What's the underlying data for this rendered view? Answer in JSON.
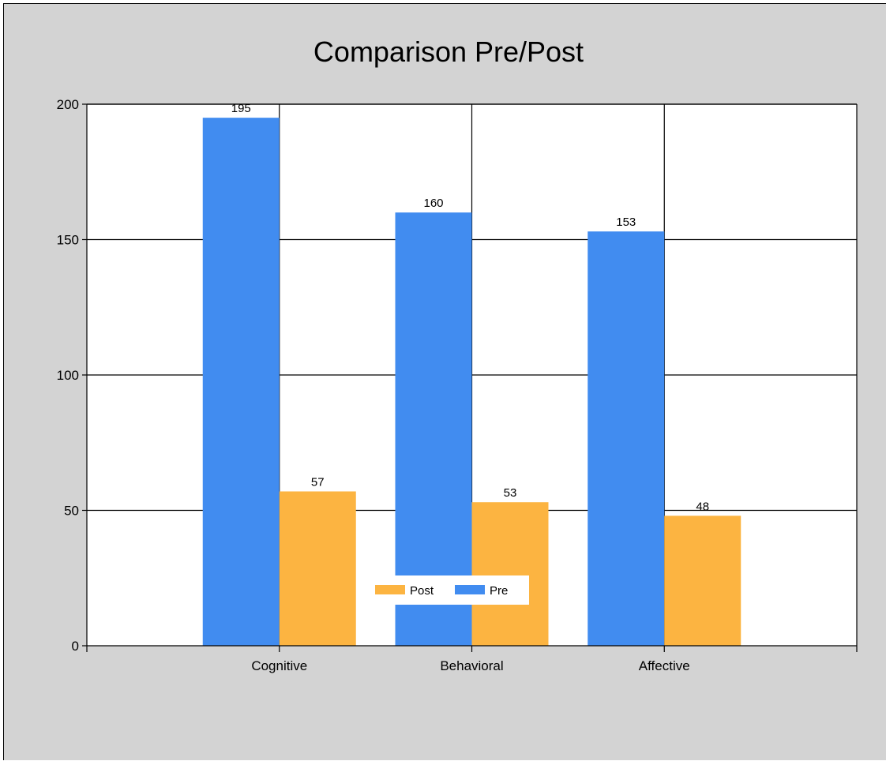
{
  "chart_data": {
    "type": "bar",
    "title": "Comparison Pre/Post",
    "xlabel": "",
    "ylabel": "",
    "categories": [
      "Cognitive",
      "Behavioral",
      "Affective"
    ],
    "series": [
      {
        "name": "Pre",
        "values": [
          195,
          160,
          153
        ],
        "color": "#418cf0"
      },
      {
        "name": "Post",
        "values": [
          57,
          53,
          48
        ],
        "color": "#fcb441"
      }
    ],
    "ylim": [
      0,
      200
    ],
    "yticks": [
      0,
      50,
      100,
      150,
      200
    ],
    "grid": true,
    "legend": {
      "position": "bottom-center",
      "order": [
        "Post",
        "Pre"
      ]
    },
    "colors": {
      "background": "#d3d3d3",
      "plot_area": "#ffffff"
    }
  }
}
